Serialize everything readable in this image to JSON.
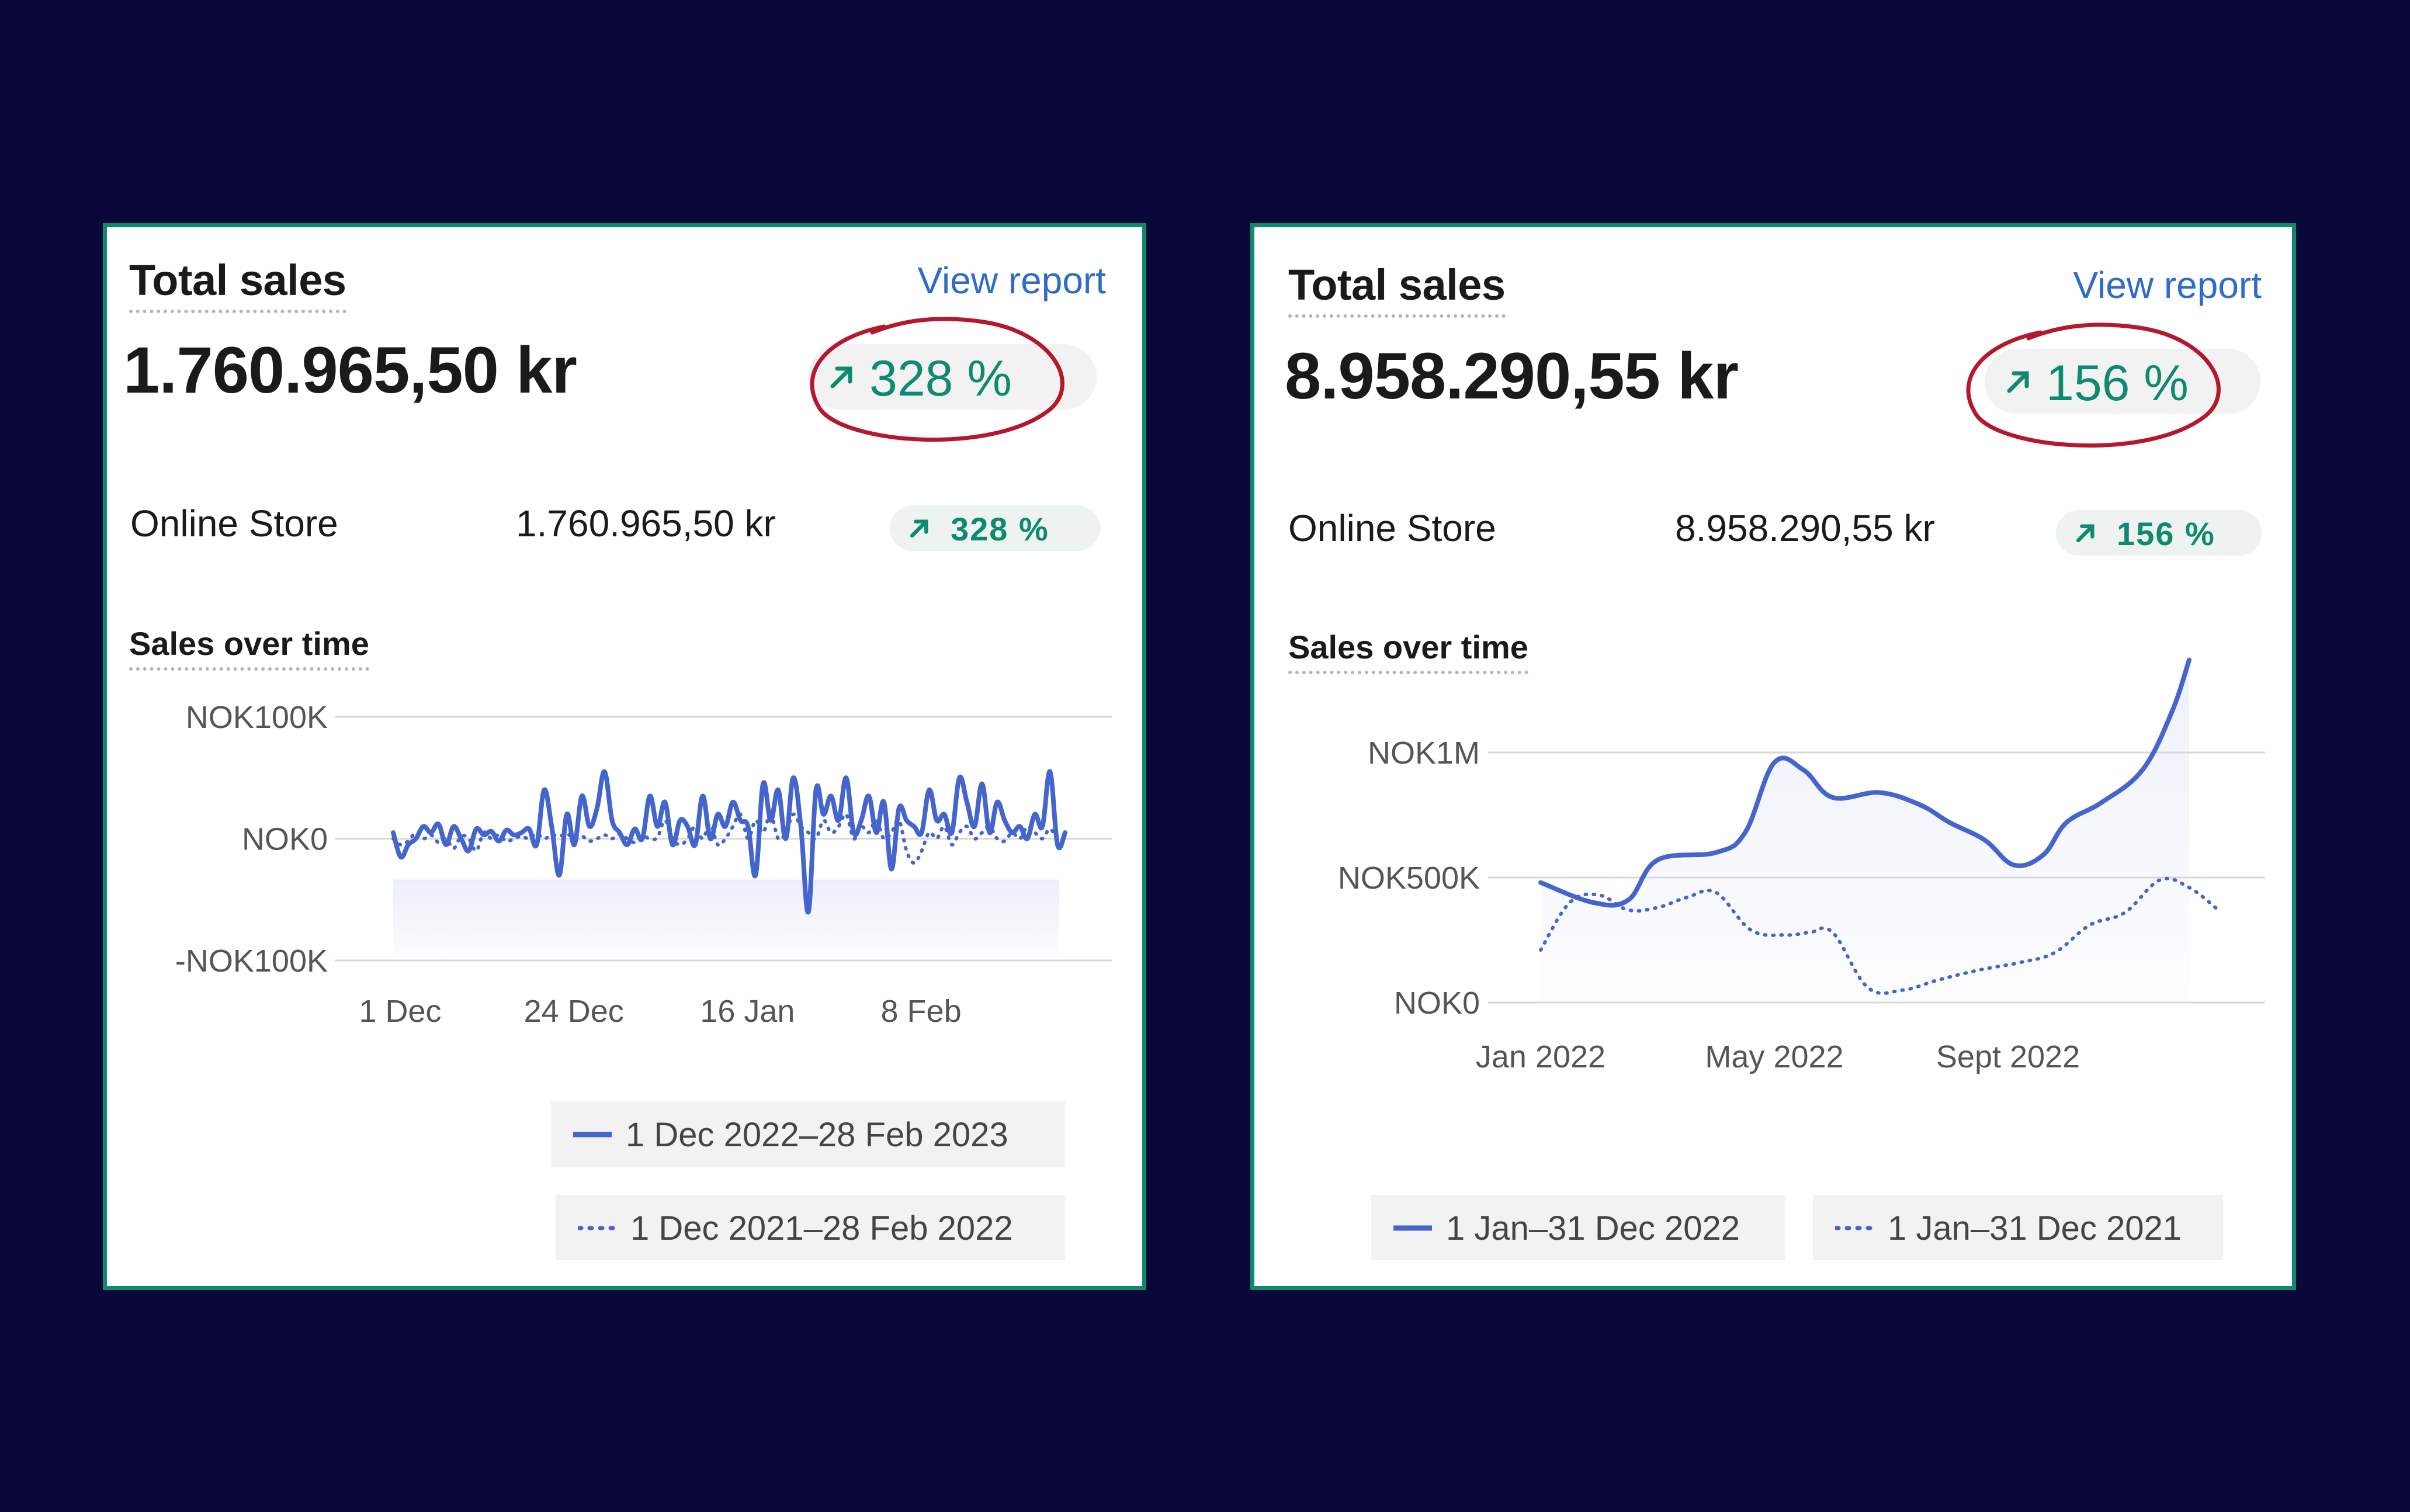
{
  "cards": [
    {
      "title": "Total sales",
      "view_report": "View report",
      "total": "1.760.965,50 kr",
      "change": "328 %",
      "store_label": "Online Store",
      "store_value": "1.760.965,50 kr",
      "store_change": "328 %",
      "chart_title": "Sales over time",
      "legend": [
        "1 Dec 2022–28 Feb 2023",
        "1 Dec 2021–28 Feb 2022"
      ],
      "y_ticks": [
        "NOK100K",
        "NOK0",
        "-NOK100K"
      ],
      "x_ticks": [
        "1 Dec",
        "24 Dec",
        "16 Jan",
        "8 Feb"
      ]
    },
    {
      "title": "Total sales",
      "view_report": "View report",
      "total": "8.958.290,55 kr",
      "change": "156 %",
      "store_label": "Online Store",
      "store_value": "8.958.290,55 kr",
      "store_change": "156 %",
      "chart_title": "Sales over time",
      "legend": [
        "1 Jan–31 Dec 2022",
        "1 Jan–31 Dec 2021"
      ],
      "y_ticks": [
        "NOK1M",
        "NOK500K",
        "NOK0"
      ],
      "x_ticks": [
        "Jan 2022",
        "May 2022",
        "Sept 2022"
      ]
    }
  ],
  "colors": {
    "accent_green": "#0e8a6e",
    "link_blue": "#2f6bc8",
    "series_blue": "#4466cc",
    "annotation_red": "#b3182c",
    "background": "#0a0838"
  },
  "icons": [
    "arrow-up-right-icon",
    "hand-drawn-circle-annotation"
  ],
  "chart_data": [
    {
      "type": "line",
      "ylim": [
        -100000,
        100000
      ],
      "x": [
        0,
        1,
        2,
        3,
        4,
        5,
        6,
        7,
        8,
        9,
        10,
        11,
        12,
        13,
        14,
        15,
        16,
        17,
        18,
        19,
        20,
        21,
        22,
        23,
        24,
        25,
        26,
        27,
        28,
        29,
        30,
        31,
        32,
        33,
        34,
        35,
        36,
        37,
        38,
        39,
        40,
        41,
        42,
        43,
        44,
        45,
        46,
        47,
        48,
        49,
        50,
        51,
        52,
        53,
        54,
        55,
        56,
        57,
        58,
        59,
        60,
        61,
        62,
        63,
        64,
        65,
        66,
        67,
        68,
        69,
        70,
        71,
        72,
        73,
        74,
        75,
        76,
        77,
        78,
        79,
        80,
        81,
        82,
        83,
        84,
        85,
        86,
        87,
        88,
        89
      ],
      "xticks": [
        {
          "label": "1 Dec",
          "x": 0
        },
        {
          "label": "24 Dec",
          "x": 23
        },
        {
          "label": "16 Jan",
          "x": 46
        },
        {
          "label": "8 Feb",
          "x": 69
        }
      ],
      "series": [
        {
          "name": "1 Dec 2022–28 Feb 2023",
          "style": "solid",
          "values": [
            5000,
            -15000,
            -5000,
            0,
            10000,
            5000,
            12000,
            -5000,
            10000,
            0,
            -10000,
            8000,
            3000,
            6000,
            -2000,
            7000,
            3000,
            5000,
            8000,
            -5000,
            40000,
            10000,
            -30000,
            20000,
            -5000,
            35000,
            10000,
            25000,
            55000,
            15000,
            5000,
            -5000,
            8000,
            0,
            35000,
            10000,
            30000,
            -5000,
            15000,
            10000,
            -5000,
            35000,
            0,
            20000,
            10000,
            30000,
            15000,
            10000,
            -30000,
            45000,
            15000,
            40000,
            0,
            50000,
            10000,
            -60000,
            40000,
            20000,
            35000,
            15000,
            50000,
            5000,
            15000,
            35000,
            5000,
            30000,
            -25000,
            25000,
            15000,
            10000,
            5000,
            40000,
            15000,
            20000,
            5000,
            50000,
            30000,
            10000,
            45000,
            5000,
            30000,
            15000,
            5000,
            10000,
            0,
            20000,
            10000,
            55000,
            -5000,
            5000
          ]
        },
        {
          "name": "1 Dec 2021–28 Feb 2022",
          "style": "dotted",
          "values": [
            0,
            -5000,
            -2000,
            5000,
            0,
            3000,
            -3000,
            0,
            -8000,
            2000,
            0,
            -10000,
            5000,
            0,
            3000,
            -2000,
            0,
            2000,
            0,
            4000,
            0,
            3000,
            2000,
            4000,
            0,
            2000,
            -2000,
            0,
            3000,
            0,
            4000,
            0,
            -3000,
            2000,
            0,
            1000,
            15000,
            0,
            -5000,
            0,
            10000,
            0,
            12000,
            -5000,
            0,
            10000,
            20000,
            0,
            15000,
            5000,
            20000,
            0,
            5000,
            20000,
            10000,
            5000,
            0,
            15000,
            5000,
            10000,
            20000,
            0,
            10000,
            5000,
            15000,
            0,
            5000,
            15000,
            -10000,
            -20000,
            -10000,
            5000,
            0,
            10000,
            -5000,
            5000,
            10000,
            0,
            5000,
            10000,
            0,
            -2000,
            5000,
            0,
            10000,
            5000,
            0,
            8000,
            0,
            2000
          ]
        }
      ]
    },
    {
      "type": "line",
      "ylim": [
        0,
        1300000
      ],
      "xticks": [
        {
          "label": "Jan 2022",
          "x": 0
        },
        {
          "label": "May 2022",
          "x": 4
        },
        {
          "label": "Sept 2022",
          "x": 8
        }
      ],
      "series": [
        {
          "name": "1 Jan–31 Dec 2022",
          "style": "solid",
          "points": [
            [
              0,
              480000
            ],
            [
              0.9,
              400000
            ],
            [
              1.5,
              410000
            ],
            [
              2,
              570000
            ],
            [
              3,
              600000
            ],
            [
              3.5,
              680000
            ],
            [
              4,
              960000
            ],
            [
              4.5,
              930000
            ],
            [
              5,
              820000
            ],
            [
              5.8,
              840000
            ],
            [
              6.5,
              790000
            ],
            [
              7,
              720000
            ],
            [
              7.6,
              650000
            ],
            [
              8.1,
              550000
            ],
            [
              8.6,
              590000
            ],
            [
              9,
              720000
            ],
            [
              9.6,
              800000
            ],
            [
              10.3,
              930000
            ],
            [
              10.8,
              1160000
            ],
            [
              11.1,
              1370000
            ]
          ]
        },
        {
          "name": "1 Jan–31 Dec 2021",
          "style": "dotted",
          "points": [
            [
              0,
              210000
            ],
            [
              0.5,
              400000
            ],
            [
              1,
              430000
            ],
            [
              1.5,
              370000
            ],
            [
              2,
              380000
            ],
            [
              2.5,
              420000
            ],
            [
              3,
              440000
            ],
            [
              3.6,
              290000
            ],
            [
              4.2,
              270000
            ],
            [
              4.6,
              280000
            ],
            [
              5,
              280000
            ],
            [
              5.6,
              60000
            ],
            [
              6.2,
              50000
            ],
            [
              6.8,
              90000
            ],
            [
              7.5,
              130000
            ],
            [
              8.2,
              160000
            ],
            [
              8.8,
              200000
            ],
            [
              9.4,
              310000
            ],
            [
              10,
              360000
            ],
            [
              10.6,
              490000
            ],
            [
              11.1,
              460000
            ],
            [
              11.6,
              370000
            ]
          ]
        }
      ]
    }
  ]
}
